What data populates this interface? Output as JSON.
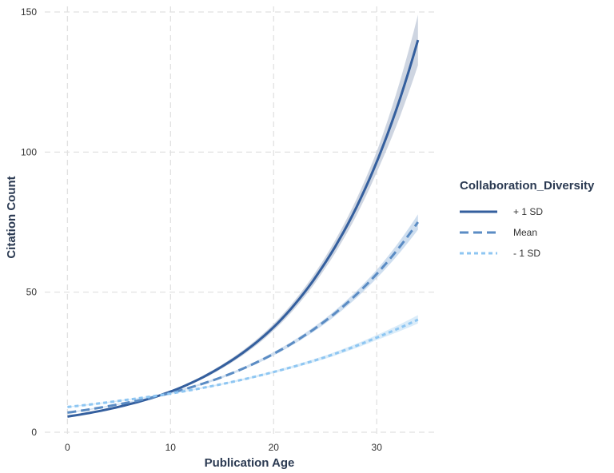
{
  "chart_data": {
    "type": "line",
    "title": "",
    "xlabel": "Publication Age",
    "ylabel": "Citation Count",
    "xlim": [
      -2.2,
      35.8
    ],
    "ylim": [
      -2,
      152
    ],
    "x_ticks": [
      0,
      10,
      20,
      30
    ],
    "y_ticks": [
      0,
      50,
      100,
      150
    ],
    "grid": true,
    "legend": {
      "title": "Collaboration_Diversity",
      "placement": "right"
    },
    "series": [
      {
        "name": "+ 1 SD",
        "style": "solid",
        "color": "#345f9e",
        "band_color": "#c5cedc",
        "x": [
          0,
          5,
          10,
          15,
          20,
          25,
          30,
          34
        ],
        "y": [
          5.6,
          9.1,
          14.5,
          23.5,
          37.5,
          60.5,
          96.5,
          140
        ],
        "y_low": [
          5.3,
          8.8,
          14.1,
          22.8,
          36.3,
          58.5,
          92.8,
          131
        ],
        "y_high": [
          5.9,
          9.4,
          14.9,
          24.2,
          38.7,
          62.5,
          100.2,
          149
        ]
      },
      {
        "name": "Mean",
        "style": "dashed",
        "color": "#5b8cc4",
        "band_color": "#c6d8ec",
        "x": [
          0,
          5,
          10,
          15,
          20,
          25,
          30,
          34
        ],
        "y": [
          7.0,
          10.0,
          14.0,
          19.7,
          28.0,
          39.7,
          56.5,
          75.0
        ],
        "y_low": [
          6.8,
          9.8,
          13.7,
          19.3,
          27.4,
          38.8,
          55.0,
          72.3
        ],
        "y_high": [
          7.2,
          10.2,
          14.3,
          20.1,
          28.6,
          40.6,
          58.0,
          77.8
        ]
      },
      {
        "name": "- 1 SD",
        "style": "dotted",
        "color": "#8ec6f2",
        "band_color": "#d4e9f8",
        "x": [
          0,
          5,
          10,
          15,
          20,
          25,
          30,
          34
        ],
        "y": [
          9.0,
          11.2,
          13.8,
          17.2,
          21.5,
          26.8,
          33.8,
          40.2
        ],
        "y_low": [
          8.8,
          11.0,
          13.6,
          16.9,
          21.1,
          26.2,
          32.9,
          38.8
        ],
        "y_high": [
          9.2,
          11.4,
          14.0,
          17.5,
          21.9,
          27.4,
          34.7,
          41.8
        ]
      }
    ]
  }
}
